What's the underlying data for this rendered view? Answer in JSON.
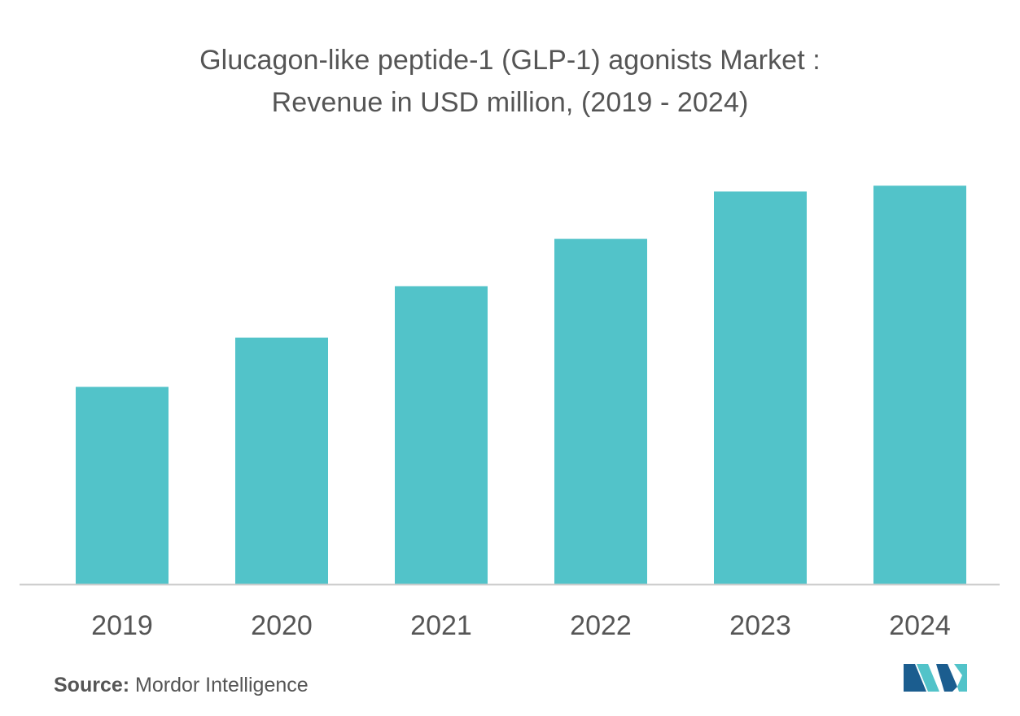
{
  "title": {
    "line1": "Glucagon-like peptide-1 (GLP-1) agonists Market :",
    "line2": "Revenue in USD million, (2019 - 2024)"
  },
  "chart_data": {
    "type": "bar",
    "title": "Glucagon-like peptide-1 (GLP-1) agonists Market : Revenue in USD million, (2019 - 2024)",
    "categories": [
      "2019",
      "2020",
      "2021",
      "2022",
      "2023",
      "2024"
    ],
    "values": [
      50,
      62.5,
      75.5,
      87.5,
      99.5,
      101
    ],
    "xlabel": "",
    "ylabel": "",
    "ylim": [
      0,
      100
    ],
    "grid": false,
    "legend": "none",
    "bar_color": "#52c3c9",
    "axis_color": "#cccccc"
  },
  "source": {
    "label": "Source:",
    "text": "Mordor Intelligence"
  },
  "logo": {
    "icon": "mordor-intelligence-logo-icon",
    "colors": [
      "#1b5d8f",
      "#52c3c9"
    ]
  }
}
